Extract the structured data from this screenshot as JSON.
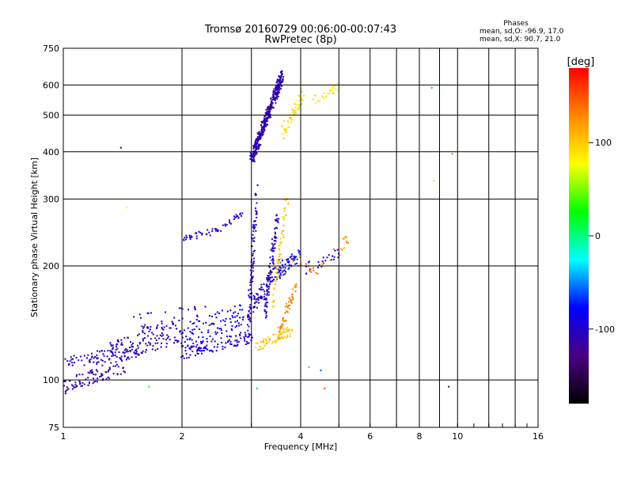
{
  "chart_data": {
    "type": "scatter",
    "title": "Tromsø 20160729 00:06:00-00:07:43",
    "subtitle": "RwPretec (8p)",
    "xlabel": "Frequency [MHz]",
    "ylabel": "Stationary phase Virtual Height [km]",
    "x_scale": "log",
    "y_scale": "log",
    "xlim": [
      1,
      16
    ],
    "ylim": [
      75,
      750
    ],
    "x_ticks": [
      1,
      2,
      4,
      6,
      8,
      10,
      16
    ],
    "x_tick_labels": [
      "1",
      "2",
      "4",
      "6",
      "8",
      "10",
      "16"
    ],
    "x_minor_ticks": [
      3,
      5,
      7,
      9,
      12,
      14
    ],
    "y_ticks": [
      75,
      100,
      200,
      300,
      400,
      500,
      600,
      750
    ],
    "y_tick_labels": [
      "75",
      "100",
      "200",
      "300",
      "400",
      "500",
      "600",
      "750"
    ],
    "grid": true,
    "phases_header": "Phases",
    "phases_line1": "mean, sd,O: -96.9, 17.0",
    "phases_line2": "mean, sd,X:  90.7, 21.0",
    "colorbar": {
      "label": "[deg]",
      "range": [
        -180,
        180
      ],
      "ticks": [
        100,
        0,
        -100
      ],
      "tick_labels": [
        "100",
        "0",
        "-100"
      ],
      "colors": [
        "#000000",
        "#4b0082",
        "#0000ff",
        "#00ffff",
        "#00ff00",
        "#ffff00",
        "#ff8800",
        "#ff0000"
      ]
    },
    "series": [
      {
        "traces": [
          {
            "f0": 1.0,
            "f1": 1.45,
            "h0": 96,
            "h1": 110,
            "spread": 0.05,
            "phase": -110,
            "n": 90
          },
          {
            "f0": 1.0,
            "f1": 1.55,
            "h0": 112,
            "h1": 118,
            "spread": 0.04,
            "phase": -105,
            "n": 80
          },
          {
            "f0": 1.3,
            "f1": 2.0,
            "h0": 118,
            "h1": 135,
            "spread": 0.07,
            "phase": -105,
            "n": 120
          },
          {
            "f0": 2.0,
            "f1": 3.0,
            "h0": 118,
            "h1": 130,
            "spread": 0.04,
            "phase": -95,
            "n": 110
          },
          {
            "f0": 2.0,
            "f1": 2.9,
            "h0": 130,
            "h1": 150,
            "spread": 0.07,
            "phase": -90,
            "n": 90
          },
          {
            "f0": 1.5,
            "f1": 2.3,
            "h0": 140,
            "h1": 150,
            "spread": 0.06,
            "phase": -100,
            "n": 40
          },
          {
            "f0": 2.0,
            "f1": 2.5,
            "h0": 236,
            "h1": 248,
            "spread": 0.02,
            "phase": -100,
            "n": 35
          },
          {
            "f0": 2.5,
            "f1": 2.85,
            "h0": 248,
            "h1": 275,
            "spread": 0.02,
            "phase": -100,
            "n": 20
          },
          {
            "f0": 2.95,
            "f1": 3.1,
            "h0": 140,
            "h1": 320,
            "spread": 0.05,
            "phase": -105,
            "n": 90
          },
          {
            "f0": 3.0,
            "f1": 3.6,
            "h0": 380,
            "h1": 640,
            "spread": 0.04,
            "phase": -110,
            "n": 380
          },
          {
            "f0": 3.25,
            "f1": 3.5,
            "h0": 150,
            "h1": 280,
            "spread": 0.04,
            "phase": -105,
            "n": 90
          },
          {
            "f0": 3.0,
            "f1": 3.6,
            "h0": 155,
            "h1": 205,
            "spread": 0.05,
            "phase": -100,
            "n": 90
          },
          {
            "f0": 3.5,
            "f1": 4.0,
            "h0": 190,
            "h1": 215,
            "spread": 0.04,
            "phase": -85,
            "n": 45
          },
          {
            "f0": 4.0,
            "f1": 5.1,
            "h0": 195,
            "h1": 220,
            "spread": 0.04,
            "phase": -90,
            "n": 25
          },
          {
            "f0": 3.1,
            "f1": 3.8,
            "h0": 122,
            "h1": 135,
            "spread": 0.03,
            "phase": 100,
            "n": 70
          },
          {
            "f0": 3.5,
            "f1": 3.9,
            "h0": 130,
            "h1": 180,
            "spread": 0.04,
            "phase": 130,
            "n": 50
          },
          {
            "f0": 3.4,
            "f1": 3.7,
            "h0": 160,
            "h1": 300,
            "spread": 0.04,
            "phase": 100,
            "n": 60
          },
          {
            "f0": 3.6,
            "f1": 4.1,
            "h0": 450,
            "h1": 580,
            "spread": 0.04,
            "phase": 95,
            "n": 50
          },
          {
            "f0": 4.3,
            "f1": 5.0,
            "h0": 545,
            "h1": 600,
            "spread": 0.03,
            "phase": 85,
            "n": 25
          },
          {
            "f0": 3.8,
            "f1": 4.4,
            "h0": 210,
            "h1": 195,
            "spread": 0.03,
            "phase": 140,
            "n": 15
          },
          {
            "f0": 4.5,
            "f1": 5.5,
            "h0": 200,
            "h1": 245,
            "spread": 0.04,
            "phase": 130,
            "n": 15
          }
        ]
      }
    ],
    "isolated_points": [
      {
        "x": 1.4,
        "y": 410,
        "phase": -150
      },
      {
        "x": 1.45,
        "y": 285,
        "phase": 80
      },
      {
        "x": 1.65,
        "y": 96,
        "phase": 20
      },
      {
        "x": 3.1,
        "y": 95,
        "phase": -40
      },
      {
        "x": 4.6,
        "y": 95,
        "phase": 150
      },
      {
        "x": 8.6,
        "y": 590,
        "phase": -40
      },
      {
        "x": 8.7,
        "y": 335,
        "phase": 100
      },
      {
        "x": 9.5,
        "y": 96,
        "phase": -150
      },
      {
        "x": 9.7,
        "y": 395,
        "phase": 140
      },
      {
        "x": 4.5,
        "y": 106,
        "phase": -60
      },
      {
        "x": 4.2,
        "y": 108,
        "phase": 20
      }
    ]
  }
}
